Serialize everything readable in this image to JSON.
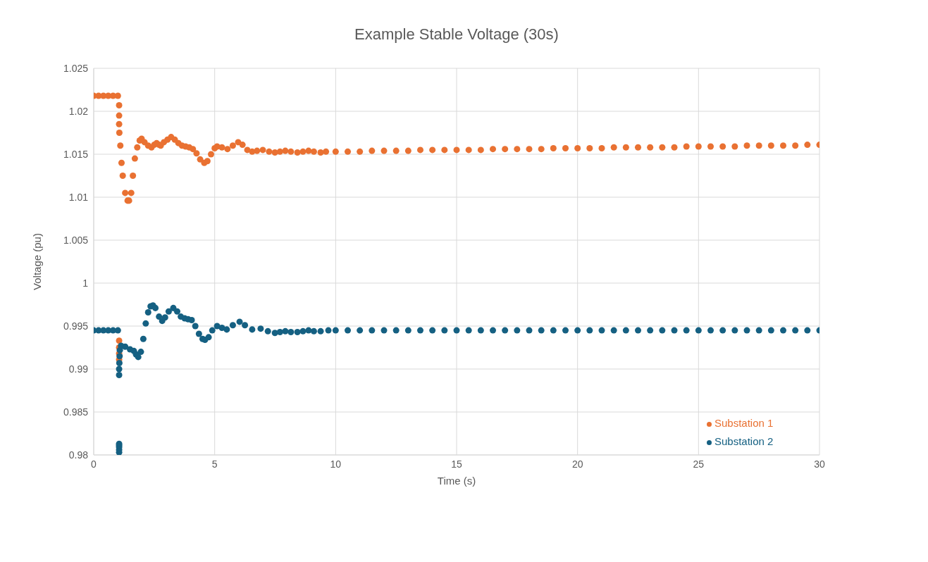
{
  "chart_data": {
    "type": "scatter",
    "title": "Example Stable Voltage (30s)",
    "xlabel": "Time (s)",
    "ylabel": "Voltage (pu)",
    "xlim": [
      0,
      30
    ],
    "xticks": [
      0,
      5,
      10,
      15,
      20,
      25,
      30
    ],
    "ylim": [
      0.98,
      1.025
    ],
    "yticks": [
      0.98,
      0.985,
      0.99,
      0.995,
      1,
      1.005,
      1.01,
      1.015,
      1.02,
      1.025
    ],
    "grid": true,
    "legend": "bottom right",
    "marker": "circle",
    "series": [
      {
        "name": "Substation 1",
        "color": "#e97132",
        "x": [
          0,
          0.2,
          0.4,
          0.6,
          0.8,
          1.0,
          1.05,
          1.05,
          1.05,
          1.05,
          1.05,
          1.05,
          1.05,
          1.06,
          1.1,
          1.15,
          1.2,
          1.3,
          1.4,
          1.46,
          1.55,
          1.62,
          1.7,
          1.8,
          1.9,
          1.98,
          2.1,
          2.25,
          2.39,
          2.5,
          2.6,
          2.7,
          2.77,
          2.9,
          3.05,
          3.2,
          3.35,
          3.5,
          3.65,
          3.8,
          3.95,
          4.1,
          4.25,
          4.4,
          4.57,
          4.7,
          4.85,
          5.0,
          5.1,
          5.3,
          5.53,
          5.75,
          5.97,
          6.15,
          6.35,
          6.55,
          6.75,
          6.99,
          7.25,
          7.49,
          7.7,
          7.92,
          8.15,
          8.42,
          8.65,
          8.88,
          9.1,
          9.38,
          9.6,
          10,
          10.5,
          11,
          11.5,
          12,
          12.5,
          13,
          13.5,
          14,
          14.5,
          15,
          15.5,
          16,
          16.5,
          17,
          17.5,
          18,
          18.5,
          19,
          19.5,
          20,
          20.5,
          21,
          21.5,
          22,
          22.5,
          23,
          23.5,
          24,
          24.5,
          25,
          25.5,
          26,
          26.5,
          27,
          27.5,
          28,
          28.5,
          29,
          29.5,
          30
        ],
        "values": [
          1.0218,
          1.0218,
          1.0218,
          1.0218,
          1.0218,
          1.0218,
          0.9911,
          0.9918,
          0.9925,
          0.9933,
          1.0207,
          1.0195,
          1.0185,
          1.0175,
          1.016,
          1.014,
          1.0125,
          1.0105,
          1.0096,
          1.0096,
          1.0105,
          1.0125,
          1.0145,
          1.0158,
          1.0166,
          1.0168,
          1.0164,
          1.016,
          1.0158,
          1.0161,
          1.0163,
          1.0161,
          1.016,
          1.0164,
          1.0167,
          1.017,
          1.0167,
          1.0163,
          1.016,
          1.0159,
          1.0158,
          1.0156,
          1.0151,
          1.0144,
          1.014,
          1.0142,
          1.015,
          1.0157,
          1.0159,
          1.0158,
          1.0156,
          1.016,
          1.0164,
          1.0161,
          1.0155,
          1.0153,
          1.0154,
          1.0155,
          1.0153,
          1.0152,
          1.0153,
          1.0154,
          1.0153,
          1.0152,
          1.0153,
          1.0154,
          1.0153,
          1.0152,
          1.0153,
          1.0153,
          1.0153,
          1.0153,
          1.0154,
          1.0154,
          1.0154,
          1.0154,
          1.0155,
          1.0155,
          1.0155,
          1.0155,
          1.0155,
          1.0155,
          1.0156,
          1.0156,
          1.0156,
          1.0156,
          1.0156,
          1.0157,
          1.0157,
          1.0157,
          1.0157,
          1.0157,
          1.0158,
          1.0158,
          1.0158,
          1.0158,
          1.0158,
          1.0158,
          1.0159,
          1.0159,
          1.0159,
          1.0159,
          1.0159,
          1.016,
          1.016,
          1.016,
          1.016,
          1.016,
          1.0161,
          1.0161
        ]
      },
      {
        "name": "Substation 2",
        "color": "#156082",
        "x": [
          0,
          0.2,
          0.4,
          0.6,
          0.8,
          1.0,
          1.05,
          1.05,
          1.05,
          1.05,
          1.05,
          1.05,
          1.05,
          1.06,
          1.07,
          1.08,
          1.13,
          1.3,
          1.5,
          1.66,
          1.75,
          1.84,
          1.95,
          2.05,
          2.15,
          2.25,
          2.35,
          2.45,
          2.55,
          2.7,
          2.83,
          2.95,
          3.1,
          3.29,
          3.45,
          3.6,
          3.76,
          3.9,
          4.05,
          4.2,
          4.35,
          4.5,
          4.6,
          4.75,
          4.9,
          5.1,
          5.3,
          5.5,
          5.75,
          6.03,
          6.25,
          6.55,
          6.9,
          7.2,
          7.49,
          7.7,
          7.92,
          8.15,
          8.42,
          8.65,
          8.88,
          9.1,
          9.38,
          9.7,
          10,
          10.5,
          11,
          11.5,
          12,
          12.5,
          13,
          13.5,
          14,
          14.5,
          15,
          15.5,
          16,
          16.5,
          17,
          17.5,
          18,
          18.5,
          19,
          19.5,
          20,
          20.5,
          21,
          21.5,
          22,
          22.5,
          23,
          23.5,
          24,
          24.5,
          25,
          25.5,
          26,
          26.5,
          27,
          27.5,
          28,
          28.5,
          29,
          29.5,
          30
        ],
        "values": [
          0.9945,
          0.9945,
          0.9945,
          0.9945,
          0.9945,
          0.9945,
          0.9803,
          0.9806,
          0.9809,
          0.9811,
          0.9813,
          0.9893,
          0.99,
          0.9907,
          0.9915,
          0.9922,
          0.9927,
          0.9926,
          0.9923,
          0.9921,
          0.9917,
          0.9914,
          0.992,
          0.9935,
          0.9953,
          0.9966,
          0.9973,
          0.9974,
          0.9971,
          0.9961,
          0.9956,
          0.996,
          0.9967,
          0.9971,
          0.9967,
          0.9961,
          0.9959,
          0.9958,
          0.9957,
          0.995,
          0.9941,
          0.9935,
          0.9934,
          0.9937,
          0.9945,
          0.995,
          0.9948,
          0.9946,
          0.9951,
          0.9955,
          0.9951,
          0.9946,
          0.9947,
          0.9944,
          0.9942,
          0.9943,
          0.9944,
          0.9943,
          0.9943,
          0.9944,
          0.9945,
          0.9944,
          0.9944,
          0.9945,
          0.9945,
          0.9945,
          0.9945,
          0.9945,
          0.9945,
          0.9945,
          0.9945,
          0.9945,
          0.9945,
          0.9945,
          0.9945,
          0.9945,
          0.9945,
          0.9945,
          0.9945,
          0.9945,
          0.9945,
          0.9945,
          0.9945,
          0.9945,
          0.9945,
          0.9945,
          0.9945,
          0.9945,
          0.9945,
          0.9945,
          0.9945,
          0.9945,
          0.9945,
          0.9945,
          0.9945,
          0.9945,
          0.9945,
          0.9945,
          0.9945,
          0.9945,
          0.9945,
          0.9945,
          0.9945,
          0.9945,
          0.9945
        ]
      }
    ]
  }
}
